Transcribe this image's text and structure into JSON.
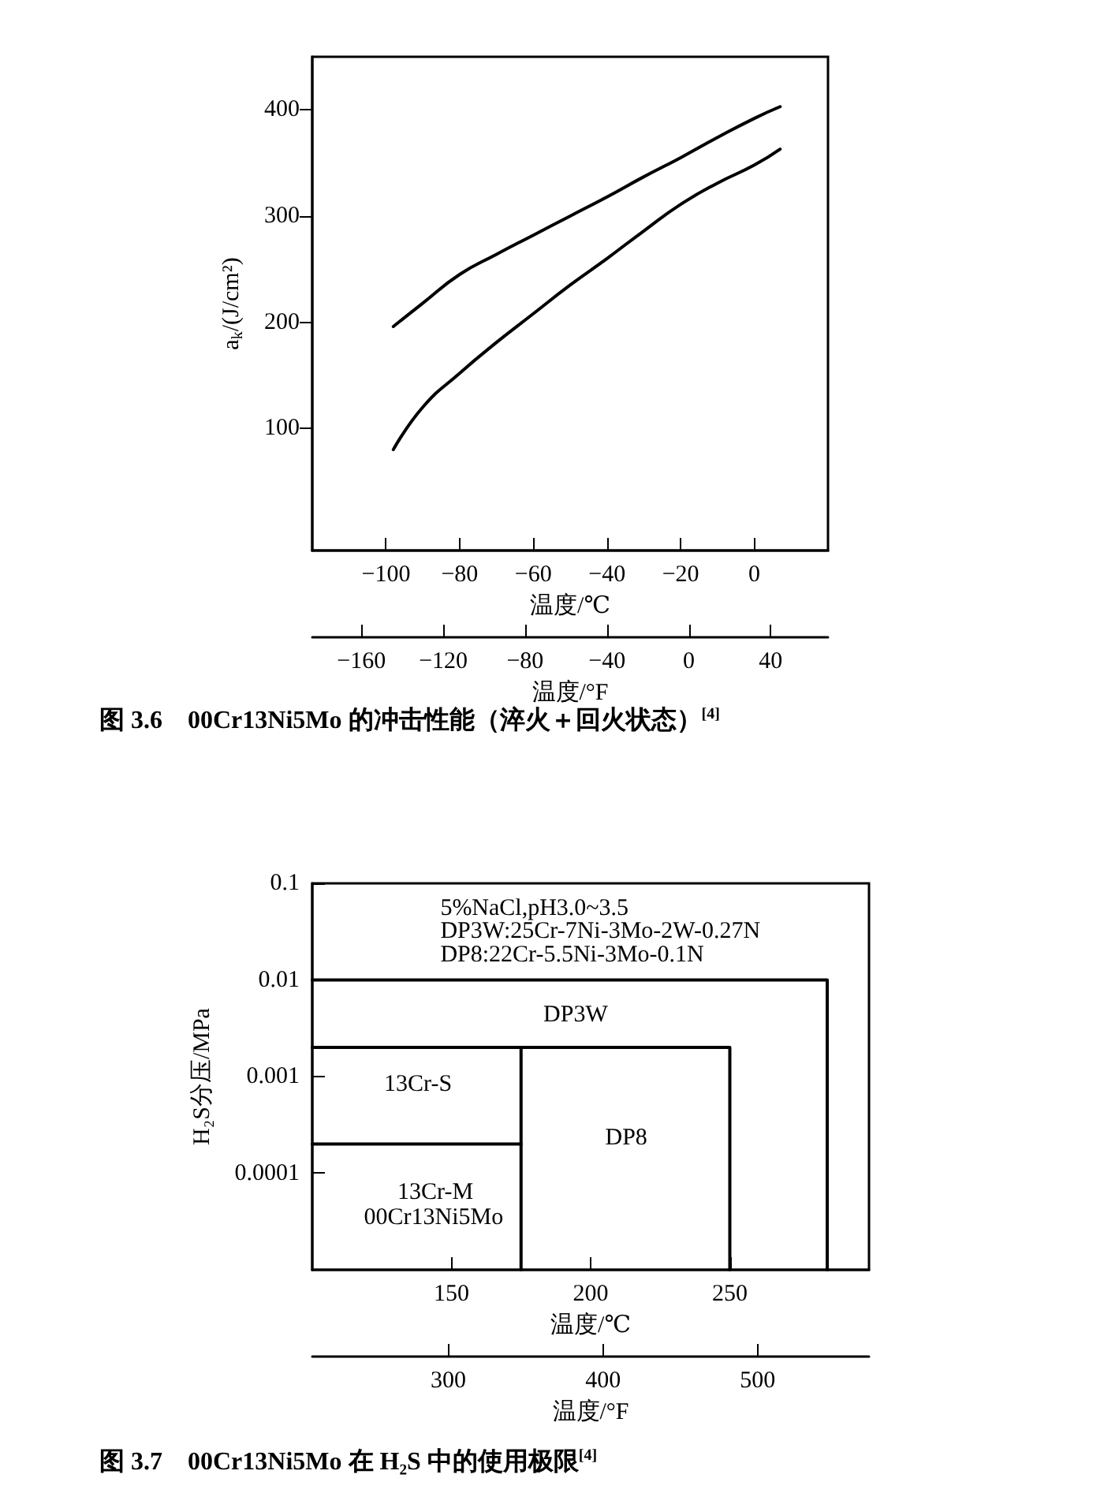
{
  "chart_data": [
    {
      "type": "line",
      "title": "图 3.6　00Cr13Ni5Mo 的冲击性能（淬火＋回火状态）$^{[4]}$",
      "xlabel": "温度/℃",
      "x2label": "温度/°F",
      "ylabel": "a$_{k}$/(J/cm²)",
      "xlim": [
        -120,
        20
      ],
      "xticks": [
        {
          "value": -100,
          "label": "−100"
        },
        {
          "value": -80,
          "label": "−80"
        },
        {
          "value": -60,
          "label": "−60"
        },
        {
          "value": -40,
          "label": "−40"
        },
        {
          "value": -20,
          "label": "−20"
        },
        0
      ],
      "x2lim": [
        -184,
        68
      ],
      "x2ticks": [
        {
          "value": -160,
          "label": "−160"
        },
        {
          "value": -120,
          "label": "−120"
        },
        {
          "value": -80,
          "label": "−80"
        },
        {
          "value": -40,
          "label": "−40"
        },
        0,
        40
      ],
      "ylim": [
        -15,
        450
      ],
      "yticks": [
        100,
        200,
        300,
        400
      ],
      "grid": false,
      "marker": "none",
      "series": [
        {
          "color": "#000000",
          "x": [
            -98,
            -90,
            -80,
            -70,
            -60,
            -50,
            -40,
            -30,
            -20,
            -10,
            0,
            7
          ],
          "values": [
            196,
            218,
            245,
            264,
            282,
            300,
            318,
            337,
            355,
            374,
            392,
            403
          ]
        },
        {
          "color": "#000000",
          "x": [
            -98,
            -90,
            -80,
            -70,
            -60,
            -50,
            -40,
            -30,
            -20,
            -10,
            0,
            7
          ],
          "values": [
            80,
            120,
            152,
            181,
            208,
            235,
            260,
            286,
            311,
            331,
            348,
            363
          ]
        }
      ]
    },
    {
      "type": "line",
      "title": "图 3.7　00Cr13Ni5Mo 在 H₂S 中的使用极限$^{[4]}$",
      "xlabel": "温度/℃",
      "x2label": "温度/°F",
      "ylabel": "H₂S分压/MPa",
      "xlim": [
        100,
        300
      ],
      "xticks": [
        150,
        200,
        250
      ],
      "x2lim": [
        212,
        572
      ],
      "x2ticks": [
        300,
        400,
        500
      ],
      "ylim": [
        1e-05,
        0.1
      ],
      "yticks": [
        0.0001,
        0.001,
        0.01,
        0.1
      ],
      "log": "y",
      "grid": false,
      "marker": "none",
      "series": [
        {
          "color": "#000000",
          "x": [
            100,
            285,
            285
          ],
          "values": [
            0.01,
            0.01,
            1e-05
          ]
        },
        {
          "color": "#000000",
          "x": [
            100,
            175,
            175
          ],
          "values": [
            0.002,
            0.002,
            1e-05
          ]
        },
        {
          "color": "#000000",
          "x": [
            175,
            250,
            250
          ],
          "values": [
            0.002,
            0.002,
            1e-05
          ]
        },
        {
          "color": "#000000",
          "x": [
            100,
            175
          ],
          "values": [
            0.0002,
            0.0002
          ]
        }
      ],
      "annotations": [
        "5%NaCl,pH3.0~3.5",
        "DP3W:25Cr-7Ni-3Mo-2W-0.27N",
        "DP8:22Cr-5.5Ni-3Mo-0.1N",
        "DP3W",
        "13Cr-S",
        "DP8",
        "13Cr-M",
        "00Cr13Ni5Mo"
      ]
    }
  ]
}
